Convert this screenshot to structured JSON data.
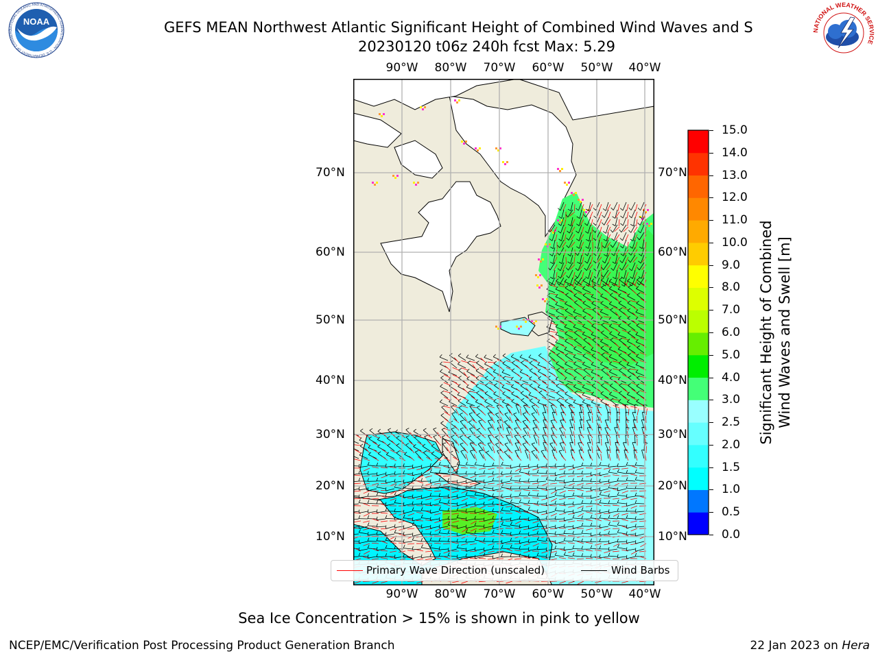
{
  "title": {
    "line1": "GEFS MEAN Northwest Atlantic Significant Height of Combined Wind Waves and S",
    "line2": "20230120 t06z 240h fcst   Max: 5.29"
  },
  "map": {
    "lon_labels": [
      "90°W",
      "80°W",
      "70°W",
      "60°W",
      "50°W",
      "40°W"
    ],
    "lat_labels": [
      "70°N",
      "60°N",
      "50°N",
      "40°N",
      "30°N",
      "20°N",
      "10°N"
    ],
    "land_color": "#efecdc",
    "ice_color": "#ffffff",
    "sea_ice_colors": [
      "#ff33cc",
      "#ff9933",
      "#ffee00"
    ],
    "wave_direction_color": "#ff0000",
    "wind_barb_color": "#000000"
  },
  "colorbar": {
    "label_line1": "Significant Height of Combined",
    "label_line2": "Wind Waves and Swell [m]",
    "ticks": [
      "0.0",
      "0.5",
      "1.0",
      "1.5",
      "2.0",
      "2.5",
      "3.0",
      "4.0",
      "5.0",
      "6.0",
      "7.0",
      "8.0",
      "9.0",
      "10.0",
      "11.0",
      "12.0",
      "13.0",
      "14.0",
      "15.0"
    ],
    "colors": [
      "#0000ff",
      "#0077ff",
      "#00ffff",
      "#33ffff",
      "#66ffff",
      "#99ffff",
      "#44ff77",
      "#00ee00",
      "#66ee00",
      "#bbff00",
      "#ddff00",
      "#ffff00",
      "#ffcc00",
      "#ffaa00",
      "#ff8800",
      "#ff6600",
      "#ff3300",
      "#ff0000"
    ]
  },
  "legend": {
    "wave_label": "Primary Wave Direction (unscaled)",
    "barb_label": "Wind Barbs"
  },
  "footnote": "Sea Ice Concentration > 15% is shown in pink to yellow",
  "credit_left": "NCEP/EMC/Verification Post Processing Product Generation Branch",
  "credit_right_date": "22 Jan 2023 on",
  "credit_right_machine": "Hera",
  "logos": {
    "left": "NOAA",
    "left_ring": "NATIONAL OCEANIC AND ATMOSPHERIC ADMINISTRATION · U.S. DEPARTMENT OF COMMERCE",
    "right_ring": "NATIONAL WEATHER SERVICE"
  }
}
